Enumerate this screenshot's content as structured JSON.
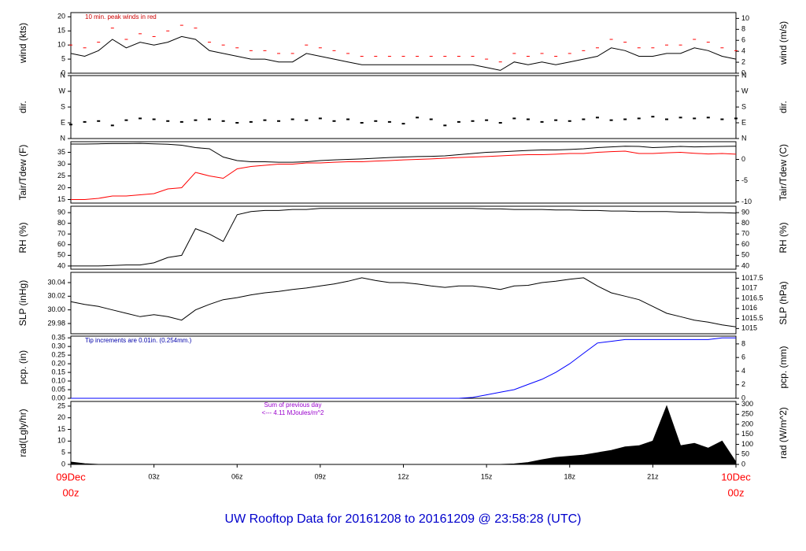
{
  "chart_data": {
    "title": "UW Rooftop Data for 20161208  to  20161209 @ 23:58:28  (UTC)",
    "x": [
      0,
      0.5,
      1,
      1.5,
      2,
      2.5,
      3,
      3.5,
      4,
      4.5,
      5,
      5.5,
      6,
      6.5,
      7,
      7.5,
      8,
      8.5,
      9,
      9.5,
      10,
      10.5,
      11,
      11.5,
      12,
      12.5,
      13,
      13.5,
      14,
      14.5,
      15,
      15.5,
      16,
      16.5,
      17,
      17.5,
      18,
      18.5,
      19,
      19.5,
      20,
      20.5,
      21,
      21.5,
      22,
      22.5,
      23,
      23.5,
      24
    ],
    "xlim": [
      0,
      24
    ],
    "xticks": [
      {
        "value": 0,
        "label": "09Dec",
        "sublabel": "00z"
      },
      {
        "value": 3,
        "label": "03z"
      },
      {
        "value": 6,
        "label": "06z"
      },
      {
        "value": 9,
        "label": "09z"
      },
      {
        "value": 12,
        "label": "12z"
      },
      {
        "value": 15,
        "label": "15z"
      },
      {
        "value": 18,
        "label": "18z"
      },
      {
        "value": 21,
        "label": "21z"
      },
      {
        "value": 24,
        "label": "10Dec",
        "sublabel": "00z"
      }
    ],
    "end_label_color": "#ff0000",
    "panels": [
      {
        "type": "line",
        "ylabel": "wind (kts)",
        "y2label": "wind (m/s)",
        "ylim": [
          0,
          21.5
        ],
        "yticks": [
          0,
          5,
          10,
          15,
          20
        ],
        "y2lim": [
          0,
          11.06
        ],
        "y2ticks": [
          0,
          2,
          4,
          6,
          8,
          10
        ],
        "annotations": [
          "10 min. peak winds in red"
        ],
        "annotation_color": "#cc0000",
        "series": [
          {
            "name": "wind",
            "color": "#000000",
            "mark": "line",
            "values": [
              7,
              6,
              8,
              12,
              9,
              11,
              10,
              11,
              13,
              12,
              8,
              7,
              6,
              5,
              5,
              4,
              4,
              7,
              6,
              5,
              4,
              3,
              3,
              3,
              3,
              3,
              3,
              3,
              3,
              3,
              2,
              1,
              4,
              3,
              4,
              3,
              4,
              5,
              6,
              9,
              8,
              6,
              6,
              7,
              7,
              9,
              8,
              6,
              5
            ]
          },
          {
            "name": "peak",
            "color": "#ff0000",
            "mark": "dash",
            "values": [
              10,
              9,
              11,
              16,
              12,
              14,
              13,
              15,
              17,
              16,
              11,
              10,
              9,
              8,
              8,
              7,
              7,
              10,
              9,
              8,
              7,
              6,
              6,
              6,
              6,
              6,
              6,
              6,
              6,
              6,
              5,
              4,
              7,
              6,
              7,
              6,
              7,
              8,
              9,
              12,
              11,
              9,
              9,
              10,
              10,
              12,
              11,
              9,
              8
            ]
          }
        ]
      },
      {
        "type": "scatter",
        "ylabel": "dir.",
        "y2label": "dir.",
        "ylim": [
          0,
          360
        ],
        "yticks": [
          {
            "value": 0,
            "label": "N"
          },
          {
            "value": 90,
            "label": "E"
          },
          {
            "value": 180,
            "label": "S"
          },
          {
            "value": 270,
            "label": "W"
          },
          {
            "value": 360,
            "label": "N"
          }
        ],
        "y2lim": [
          0,
          360
        ],
        "y2ticks": [
          {
            "value": 0,
            "label": "N"
          },
          {
            "value": 90,
            "label": "E"
          },
          {
            "value": 180,
            "label": "S"
          },
          {
            "value": 270,
            "label": "W"
          },
          {
            "value": 360,
            "label": "N"
          }
        ],
        "series": [
          {
            "name": "direction",
            "color": "#000000",
            "mark": "dot",
            "values": [
              80,
              95,
              100,
              75,
              105,
              115,
              110,
              100,
              95,
              105,
              110,
              100,
              90,
              95,
              105,
              100,
              110,
              105,
              115,
              100,
              110,
              90,
              100,
              95,
              85,
              120,
              110,
              75,
              95,
              100,
              105,
              90,
              115,
              110,
              95,
              105,
              100,
              110,
              120,
              105,
              110,
              115,
              125,
              110,
              120,
              115,
              120,
              110,
              115
            ]
          }
        ]
      },
      {
        "type": "line",
        "ylabel": "Tair/Tdew (F)",
        "y2label": "Tair/Tdew (C)",
        "ylim": [
          13.5,
          39.5
        ],
        "yticks": [
          15,
          20,
          25,
          30,
          35
        ],
        "y2lim": [
          -10.28,
          4.17
        ],
        "y2ticks": [
          -10,
          -5,
          0
        ],
        "series": [
          {
            "name": "Tair",
            "color": "#000000",
            "mark": "line",
            "values": [
              38.5,
              38.5,
              38.6,
              38.7,
              38.7,
              38.8,
              38.6,
              38.4,
              38,
              37,
              36.5,
              33,
              31.5,
              31,
              31,
              30.8,
              30.8,
              31,
              31.5,
              31.8,
              32,
              32.2,
              32.5,
              32.8,
              33,
              33.2,
              33.3,
              33.5,
              34,
              34.5,
              35,
              35.2,
              35.5,
              35.8,
              36,
              36,
              36.2,
              36.5,
              37,
              37.3,
              37.6,
              37.5,
              37,
              37.2,
              37.5,
              37.3,
              37.4,
              37.5,
              37.6
            ]
          },
          {
            "name": "Tdew",
            "color": "#ff0000",
            "mark": "line",
            "values": [
              15,
              15,
              15.5,
              16.5,
              16.5,
              17,
              17.5,
              19.5,
              20,
              26.5,
              25,
              24,
              28,
              29,
              29.5,
              30,
              30,
              30.5,
              30.5,
              30.8,
              31,
              31,
              31.3,
              31.5,
              31.8,
              32,
              32.2,
              32.5,
              32.8,
              33,
              33.2,
              33.5,
              33.8,
              34,
              34,
              34.2,
              34.5,
              34.5,
              35,
              35.3,
              35.5,
              34.5,
              34.5,
              34.8,
              35,
              34.6,
              34.3,
              34.5,
              34.2
            ]
          }
        ]
      },
      {
        "type": "line",
        "ylabel": "RH (%)",
        "y2label": "RH (%)",
        "ylim": [
          37,
          96
        ],
        "yticks": [
          40,
          50,
          60,
          70,
          80,
          90
        ],
        "y2lim": [
          37,
          96
        ],
        "y2ticks": [
          40,
          50,
          60,
          70,
          80,
          90
        ],
        "series": [
          {
            "name": "RH",
            "color": "#000000",
            "mark": "line",
            "values": [
              40,
              40,
              40,
              40.5,
              41,
              41,
              43,
              48,
              50,
              75,
              70,
              63,
              88,
              91,
              92,
              92,
              93,
              93,
              94,
              94,
              94,
              94,
              94,
              94,
              94,
              94,
              94,
              94,
              94,
              94,
              93.5,
              93.5,
              93,
              93,
              93,
              92.5,
              92.5,
              92,
              92,
              91.5,
              91.5,
              91,
              91,
              91,
              90.5,
              90.5,
              90,
              90,
              89.5
            ]
          }
        ]
      },
      {
        "type": "line",
        "ylabel": "SLP (inHg)",
        "y2label": "SLP (hPa)",
        "ylim": [
          29.965,
          30.055
        ],
        "yticks": [
          {
            "value": 29.98,
            "label": "29.98"
          },
          {
            "value": 30.0,
            "label": "30.00"
          },
          {
            "value": 30.02,
            "label": "30.02"
          },
          {
            "value": 30.04,
            "label": "30.04"
          }
        ],
        "y2lim": [
          1014.74,
          1017.79
        ],
        "y2ticks": [
          1015,
          1015.5,
          1016,
          1016.5,
          1017,
          1017.5
        ],
        "series": [
          {
            "name": "SLP",
            "color": "#000000",
            "mark": "line",
            "values": [
              30.012,
              30.008,
              30.005,
              30.0,
              29.995,
              29.99,
              29.993,
              29.99,
              29.985,
              30.0,
              30.008,
              30.015,
              30.018,
              30.022,
              30.025,
              30.027,
              30.03,
              30.032,
              30.035,
              30.038,
              30.042,
              30.047,
              30.043,
              30.04,
              30.04,
              30.038,
              30.035,
              30.033,
              30.035,
              30.035,
              30.033,
              30.03,
              30.035,
              30.036,
              30.04,
              30.042,
              30.045,
              30.047,
              30.035,
              30.025,
              30.02,
              30.015,
              30.005,
              29.995,
              29.99,
              29.985,
              29.982,
              29.978,
              29.975
            ]
          }
        ]
      },
      {
        "type": "line",
        "ylabel": "pcp. (in)",
        "y2label": "pcp. (mm)",
        "ylim": [
          0,
          0.36
        ],
        "yticks": [
          {
            "value": 0,
            "label": "0.00"
          },
          {
            "value": 0.05,
            "label": "0.05"
          },
          {
            "value": 0.1,
            "label": "0.10"
          },
          {
            "value": 0.15,
            "label": "0.15"
          },
          {
            "value": 0.2,
            "label": "0.20"
          },
          {
            "value": 0.25,
            "label": "0.25"
          },
          {
            "value": 0.3,
            "label": "0.30"
          },
          {
            "value": 0.35,
            "label": "0.35"
          }
        ],
        "y2lim": [
          0,
          9.144
        ],
        "y2ticks": [
          0,
          2,
          4,
          6,
          8
        ],
        "annotations": [
          "Tip increments are 0.01in. (0.254mm.)"
        ],
        "annotation_color": "#0000aa",
        "series": [
          {
            "name": "pcp",
            "color": "#0000ff",
            "mark": "line",
            "values": [
              0,
              0,
              0,
              0,
              0,
              0,
              0,
              0,
              0,
              0,
              0,
              0,
              0,
              0,
              0,
              0,
              0,
              0,
              0,
              0,
              0,
              0,
              0,
              0,
              0,
              0,
              0,
              0,
              0,
              0.005,
              0.02,
              0.035,
              0.05,
              0.08,
              0.11,
              0.15,
              0.2,
              0.26,
              0.32,
              0.33,
              0.34,
              0.34,
              0.34,
              0.34,
              0.34,
              0.34,
              0.34,
              0.35,
              0.35
            ]
          }
        ]
      },
      {
        "type": "line",
        "ylabel": "rad(Lgly/hr)",
        "y2label": "rad (W/m^2)",
        "ylim": [
          0,
          27
        ],
        "yticks": [
          0,
          5,
          10,
          15,
          20,
          25
        ],
        "y2lim": [
          0,
          314
        ],
        "y2ticks": [
          0,
          50,
          100,
          150,
          200,
          250,
          300
        ],
        "annotations": [
          "Sum of previous day",
          "<--- 4.11 MJoules/m^2"
        ],
        "annotation_color": "#9900cc",
        "series": [
          {
            "name": "rad",
            "color": "#000000",
            "mark": "area",
            "values": [
              1,
              0.3,
              0,
              0,
              0,
              0,
              0,
              0,
              0,
              0,
              0,
              0,
              0,
              0,
              0,
              0,
              0,
              0,
              0,
              0,
              0,
              0,
              0,
              0,
              0,
              0,
              0,
              0,
              0,
              0,
              0,
              0,
              0.2,
              0.8,
              2,
              3,
              3.5,
              4,
              5,
              6,
              7.5,
              8,
              10,
              25,
              8,
              9,
              7,
              10,
              1
            ]
          }
        ]
      }
    ]
  }
}
